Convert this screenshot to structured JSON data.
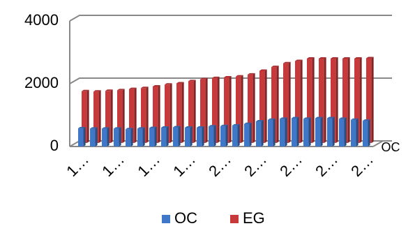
{
  "chart_data": {
    "type": "bar3d",
    "categories": [
      "1…",
      null,
      null,
      "1…",
      null,
      null,
      "1…",
      null,
      null,
      "1…",
      null,
      null,
      "2…",
      null,
      null,
      "2…",
      null,
      null,
      "2…",
      null,
      null,
      "2…",
      null,
      null,
      "2…"
    ],
    "series": [
      {
        "name": "OC",
        "color": "#3f78c8",
        "values": [
          580,
          570,
          570,
          570,
          550,
          570,
          590,
          600,
          610,
          600,
          600,
          640,
          650,
          670,
          720,
          800,
          850,
          880,
          900,
          880,
          900,
          900,
          880,
          850,
          820
        ]
      },
      {
        "name": "EG",
        "color": "#c8393c",
        "values": [
          1650,
          1640,
          1660,
          1680,
          1720,
          1750,
          1800,
          1860,
          1900,
          1970,
          2030,
          2070,
          2090,
          2120,
          2180,
          2300,
          2420,
          2540,
          2610,
          2690,
          2690,
          2690,
          2690,
          2690,
          2700
        ]
      }
    ],
    "z_label": "OC",
    "ylim": [
      0,
      4000
    ],
    "yticks": [
      0,
      2000,
      4000
    ],
    "grid": true,
    "legend": "bottom"
  }
}
